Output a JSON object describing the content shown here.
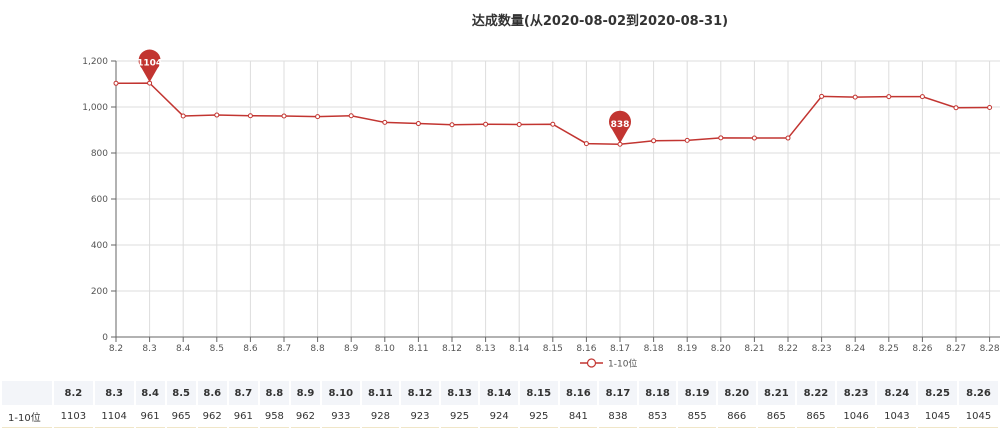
{
  "chart_data": {
    "type": "line",
    "title": "达成数量(从2020-08-02到2020-08-31)",
    "categories": [
      "8.2",
      "8.3",
      "8.4",
      "8.5",
      "8.6",
      "8.7",
      "8.8",
      "8.9",
      "8.10",
      "8.11",
      "8.12",
      "8.13",
      "8.14",
      "8.15",
      "8.16",
      "8.17",
      "8.18",
      "8.19",
      "8.20",
      "8.21",
      "8.22",
      "8.23",
      "8.24",
      "8.25",
      "8.26",
      "8.27",
      "8.28"
    ],
    "series": [
      {
        "name": "1-10位",
        "values": [
          1103,
          1104,
          961,
          965,
          962,
          961,
          958,
          962,
          933,
          928,
          923,
          925,
          924,
          925,
          841,
          838,
          853,
          855,
          866,
          865,
          865,
          1046,
          1043,
          1045,
          1045,
          997,
          998
        ]
      }
    ],
    "ylim": [
      0,
      1200
    ],
    "yticks": [
      "0",
      "200",
      "400",
      "600",
      "800",
      "1,000",
      "1,200"
    ],
    "grid": true,
    "legend": "bottom",
    "color": "#c23531",
    "markpoints": [
      {
        "label": "1104",
        "category": "8.3"
      },
      {
        "label": "838",
        "category": "8.17"
      }
    ]
  },
  "table": {
    "row_label": "1-10位",
    "headers": [
      "8.2",
      "8.3",
      "8.4",
      "8.5",
      "8.6",
      "8.7",
      "8.8",
      "8.9",
      "8.10",
      "8.11",
      "8.12",
      "8.13",
      "8.14",
      "8.15",
      "8.16",
      "8.17",
      "8.18",
      "8.19",
      "8.20",
      "8.21",
      "8.22",
      "8.23",
      "8.24",
      "8.25",
      "8.26"
    ],
    "values": [
      "1103",
      "1104",
      "961",
      "965",
      "962",
      "961",
      "958",
      "962",
      "933",
      "928",
      "923",
      "925",
      "924",
      "925",
      "841",
      "838",
      "853",
      "855",
      "866",
      "865",
      "865",
      "1046",
      "1043",
      "1045",
      "1045"
    ]
  }
}
